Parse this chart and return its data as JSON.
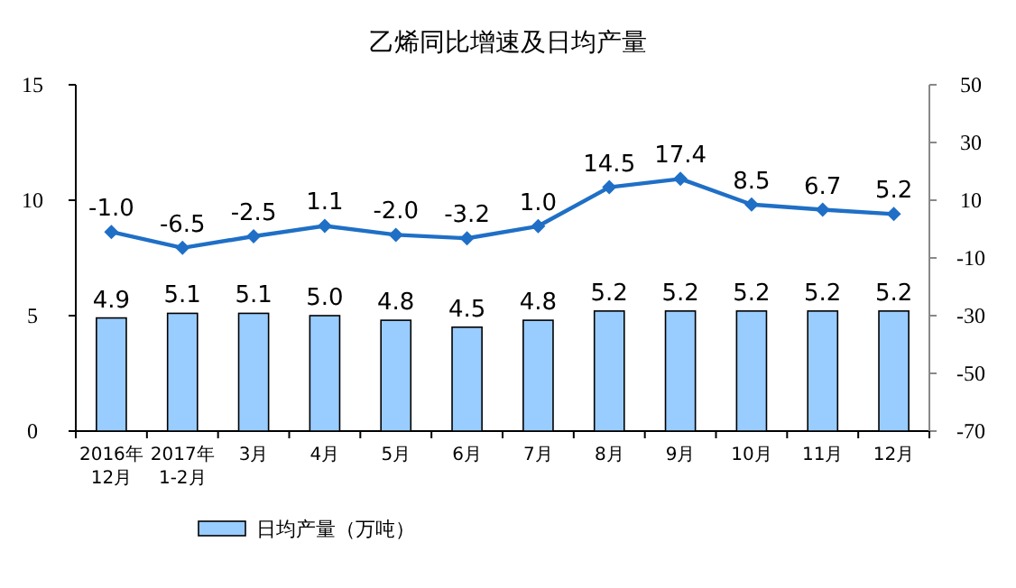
{
  "chart_data": {
    "type": "bar",
    "title": "乙烯同比增速及日均产量",
    "categories": [
      "2016年\n12月",
      "2017年\n1-2月",
      "3月",
      "4月",
      "5月",
      "6月",
      "7月",
      "8月",
      "9月",
      "10月",
      "11月",
      "12月"
    ],
    "series": [
      {
        "name": "日均产量（万吨）",
        "color": "#99ccff",
        "values": [
          4.9,
          5.1,
          5.1,
          5.0,
          4.8,
          4.5,
          4.8,
          5.2,
          5.2,
          5.2,
          5.2,
          5.2
        ],
        "value_labels": [
          "4.9",
          "5.1",
          "5.1",
          "5.0",
          "4.8",
          "4.5",
          "4.8",
          "5.2",
          "5.2",
          "5.2",
          "5.2",
          "5.2"
        ]
      },
      {
        "type": "line",
        "axis": "y2",
        "color": "#1f6fc6",
        "values": [
          -1.0,
          -6.5,
          -2.5,
          1.1,
          -2.0,
          -3.2,
          1.0,
          14.5,
          17.4,
          8.5,
          6.7,
          5.2
        ],
        "value_labels": [
          "-1.0",
          "-6.5",
          "-2.5",
          "1.1",
          "-2.0",
          "-3.2",
          "1.0",
          "14.5",
          "17.4",
          "8.5",
          "6.7",
          "5.2"
        ]
      }
    ],
    "ylim": [
      0,
      15
    ],
    "yticks": [
      0,
      5,
      10,
      15
    ],
    "y2lim": [
      -70,
      50
    ],
    "y2ticks": [
      -70,
      -50,
      -30,
      -10,
      10,
      30,
      50
    ],
    "legend": "bottom",
    "marker": "diamond"
  }
}
